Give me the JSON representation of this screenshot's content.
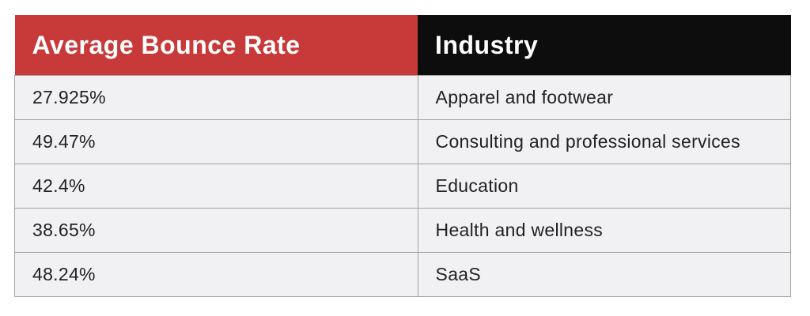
{
  "table": {
    "columns": [
      {
        "label": "Average Bounce Rate",
        "header_bg": "#c8393a"
      },
      {
        "label": "Industry",
        "header_bg": "#0d0d0d"
      }
    ],
    "rows": [
      {
        "rate": "27.925%",
        "industry": "Apparel and footwear"
      },
      {
        "rate": "49.47%",
        "industry": "Consulting and professional services"
      },
      {
        "rate": "42.4%",
        "industry": "Education"
      },
      {
        "rate": "38.65%",
        "industry": "Health and wellness"
      },
      {
        "rate": "48.24%",
        "industry": "SaaS"
      }
    ]
  },
  "colors": {
    "header_red": "#c8393a",
    "header_black": "#0d0d0d",
    "row_bg": "#f1f0f2",
    "border": "#a3a3a3",
    "body_text": "#222222",
    "header_text": "#ffffff",
    "page_bg": "#ffffff"
  },
  "chart_data": {
    "type": "table",
    "title": "",
    "columns": [
      "Average Bounce Rate",
      "Industry"
    ],
    "rows": [
      [
        "27.925%",
        "Apparel and footwear"
      ],
      [
        "49.47%",
        "Consulting and professional services"
      ],
      [
        "42.4%",
        "Education"
      ],
      [
        "38.65%",
        "Health and wellness"
      ],
      [
        "48.24%",
        "SaaS"
      ]
    ],
    "bounce_rate_values": [
      27.925,
      49.47,
      42.4,
      38.65,
      48.24
    ],
    "industries": [
      "Apparel and footwear",
      "Consulting and professional services",
      "Education",
      "Health and wellness",
      "SaaS"
    ]
  }
}
